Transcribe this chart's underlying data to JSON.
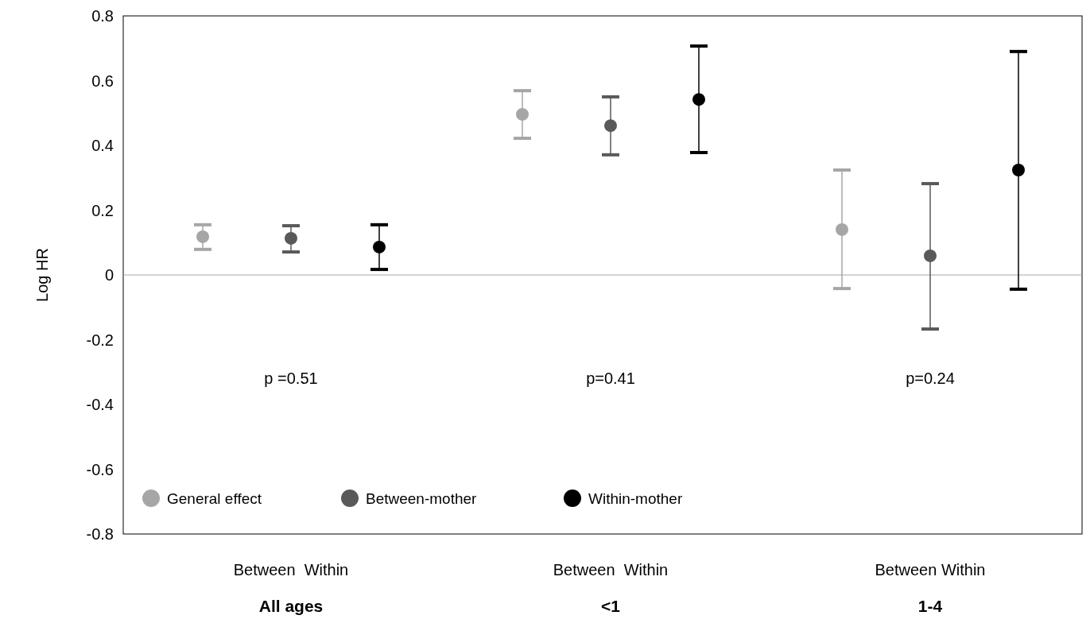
{
  "chart_data": {
    "type": "scatter",
    "ylabel": "Log HR",
    "categories": [
      "All ages",
      "<1",
      "1-4"
    ],
    "ylim": [
      -0.8,
      0.8
    ],
    "yticks": [
      0.8,
      0.6,
      0.4,
      0.2,
      0,
      -0.2,
      -0.4,
      -0.6,
      -0.8
    ],
    "ref_lines": [
      {
        "axis": "y",
        "value": 0,
        "color": "#a6a6a6"
      }
    ],
    "legend": "bottom left",
    "marker": "circle",
    "series": [
      {
        "name": "General effect",
        "color": "#a6a6a6",
        "values": [
          0.118,
          0.496,
          0.14
        ],
        "errors": [
          [
            0.079,
            0.155
          ],
          [
            0.422,
            0.569
          ],
          [
            -0.042,
            0.324
          ]
        ]
      },
      {
        "name": "Between-mother",
        "color": "#595959",
        "values": [
          0.113,
          0.461,
          0.059
        ],
        "errors": [
          [
            0.071,
            0.152
          ],
          [
            0.371,
            0.55
          ],
          [
            -0.167,
            0.282
          ]
        ]
      },
      {
        "name": "Within-mother",
        "color": "#000000",
        "values": [
          0.086,
          0.542,
          0.324
        ],
        "errors": [
          [
            0.017,
            0.155
          ],
          [
            0.378,
            0.707
          ],
          [
            -0.044,
            0.69
          ]
        ]
      }
    ],
    "annotations": [
      "Between  Within",
      "Between  Within",
      "Between Within",
      "p =0.51",
      "p=0.41",
      "p=0.24"
    ]
  }
}
